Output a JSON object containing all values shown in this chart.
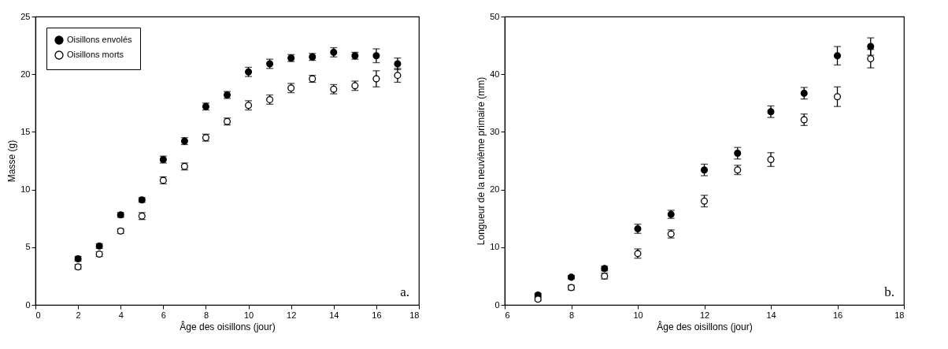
{
  "chart_data": [
    {
      "type": "scatter",
      "xlabel": "Âge des oisillons (jour)",
      "ylabel": "Masse (g)",
      "annotations": [
        "a."
      ],
      "xlim": [
        0,
        18
      ],
      "xticks": [
        0,
        2,
        4,
        6,
        8,
        10,
        12,
        14,
        16,
        18
      ],
      "ylim": [
        0,
        25
      ],
      "yticks": [
        0,
        5,
        10,
        15,
        20,
        25
      ],
      "legend": "top left",
      "marker": "circle",
      "grid": false,
      "x": [
        2,
        3,
        4,
        5,
        6,
        7,
        8,
        9,
        10,
        11,
        12,
        13,
        14,
        15,
        16,
        17
      ],
      "series": [
        {
          "name": "Oisillons envolés",
          "color": "#000000",
          "values": [
            4.0,
            5.1,
            7.8,
            9.1,
            12.6,
            14.2,
            17.2,
            18.2,
            20.2,
            20.9,
            21.4,
            21.5,
            21.9,
            21.6,
            21.6,
            20.9
          ],
          "errors": [
            0.2,
            0.2,
            0.2,
            0.2,
            0.3,
            0.3,
            0.3,
            0.3,
            0.4,
            0.4,
            0.3,
            0.3,
            0.4,
            0.3,
            0.6,
            0.5
          ]
        },
        {
          "name": "Oisillons morts",
          "color": "#ffffff",
          "values": [
            3.3,
            4.4,
            6.4,
            7.7,
            10.8,
            12.0,
            14.5,
            15.9,
            17.3,
            17.8,
            18.8,
            19.6,
            18.7,
            19.0,
            19.6,
            19.9
          ],
          "errors": [
            0.2,
            0.2,
            0.2,
            0.3,
            0.3,
            0.3,
            0.3,
            0.3,
            0.4,
            0.4,
            0.4,
            0.3,
            0.4,
            0.4,
            0.7,
            0.6
          ]
        }
      ]
    },
    {
      "type": "scatter",
      "xlabel": "Âge des oisillons (jour)",
      "ylabel": "Longueur de la neuvième primaire (mm)",
      "annotations": [
        "b."
      ],
      "xlim": [
        6,
        18
      ],
      "xticks": [
        6,
        8,
        10,
        12,
        14,
        16,
        18
      ],
      "ylim": [
        0,
        50
      ],
      "yticks": [
        0,
        10,
        20,
        30,
        40,
        50
      ],
      "legend": "top left",
      "marker": "circle",
      "grid": false,
      "x": [
        7,
        8,
        9,
        10,
        11,
        12,
        13,
        14,
        15,
        16,
        17
      ],
      "series": [
        {
          "name": "Oisillons envolés",
          "color": "#000000",
          "values": [
            1.7,
            4.8,
            6.3,
            13.2,
            15.7,
            23.4,
            26.3,
            33.5,
            36.7,
            43.2,
            44.8
          ],
          "errors": [
            0.3,
            0.3,
            0.4,
            0.8,
            0.7,
            1.0,
            1.0,
            1.0,
            1.0,
            1.6,
            1.5
          ]
        },
        {
          "name": "Oisillons morts",
          "color": "#ffffff",
          "values": [
            1.0,
            3.0,
            5.0,
            8.9,
            12.3,
            18.0,
            23.4,
            25.2,
            32.1,
            36.1,
            42.7
          ],
          "errors": [
            0.3,
            0.4,
            0.5,
            0.8,
            0.7,
            1.0,
            0.8,
            1.2,
            1.0,
            1.7,
            1.6
          ]
        }
      ]
    }
  ]
}
